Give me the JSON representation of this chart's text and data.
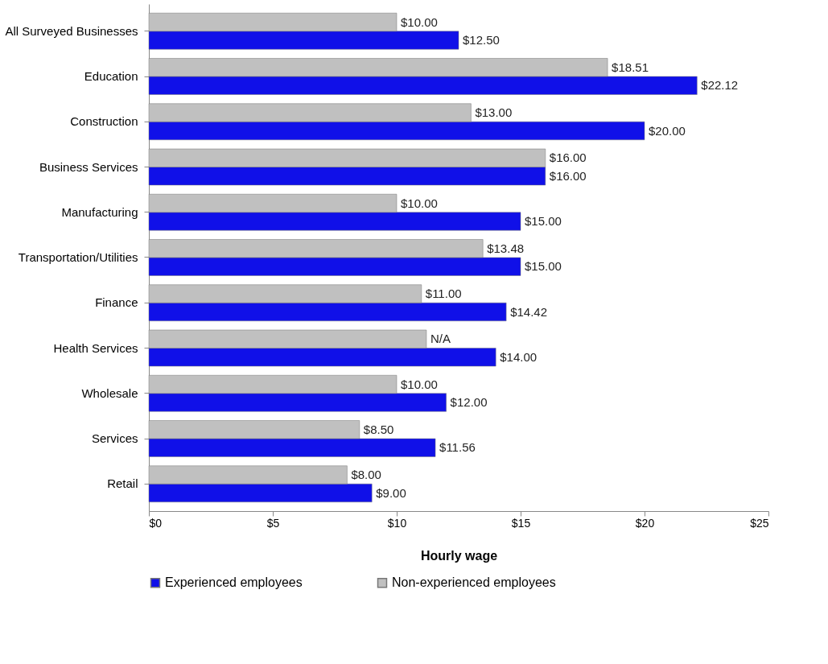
{
  "chart_data": {
    "type": "bar",
    "orientation": "horizontal",
    "xlabel": "Hourly wage",
    "categories": [
      "All Surveyed Businesses",
      "Education",
      "Construction",
      "Business Services",
      "Manufacturing",
      "Transportation/Utilities",
      "Finance",
      "Health Services",
      "Wholesale",
      "Services",
      "Retail"
    ],
    "series": [
      {
        "name": "Experienced employees",
        "color": "#1010e8",
        "values": [
          12.5,
          22.12,
          20,
          16,
          15,
          15,
          14.42,
          14,
          12,
          11.56,
          9
        ],
        "value_labels": [
          "$12.50",
          "$22.12",
          "$20.00",
          "$16.00",
          "$15.00",
          "$15.00",
          "$14.42",
          "$14.00",
          "$12.00",
          "$11.56",
          "$9.00"
        ]
      },
      {
        "name": "Non-experienced employees",
        "color": "#c0c0c0",
        "values": [
          10,
          18.51,
          13,
          16,
          10,
          13.48,
          11,
          11.2,
          10,
          8.5,
          8
        ],
        "value_labels": [
          "$10.00",
          "$18.51",
          "$13.00",
          "$16.00",
          "$10.00",
          "$13.48",
          "$11.00",
          "N/A",
          "$10.00",
          "$8.50",
          "$8.00"
        ]
      }
    ],
    "xlim": [
      0,
      25
    ],
    "xticks": [
      {
        "value": 0,
        "label": "$0"
      },
      {
        "value": 5,
        "label": "$5"
      },
      {
        "value": 10,
        "label": "$10"
      },
      {
        "value": 15,
        "label": "$15"
      },
      {
        "value": 20,
        "label": "$20"
      },
      {
        "value": 25,
        "label": "$25"
      }
    ],
    "grid": false,
    "legend": "bottom"
  }
}
